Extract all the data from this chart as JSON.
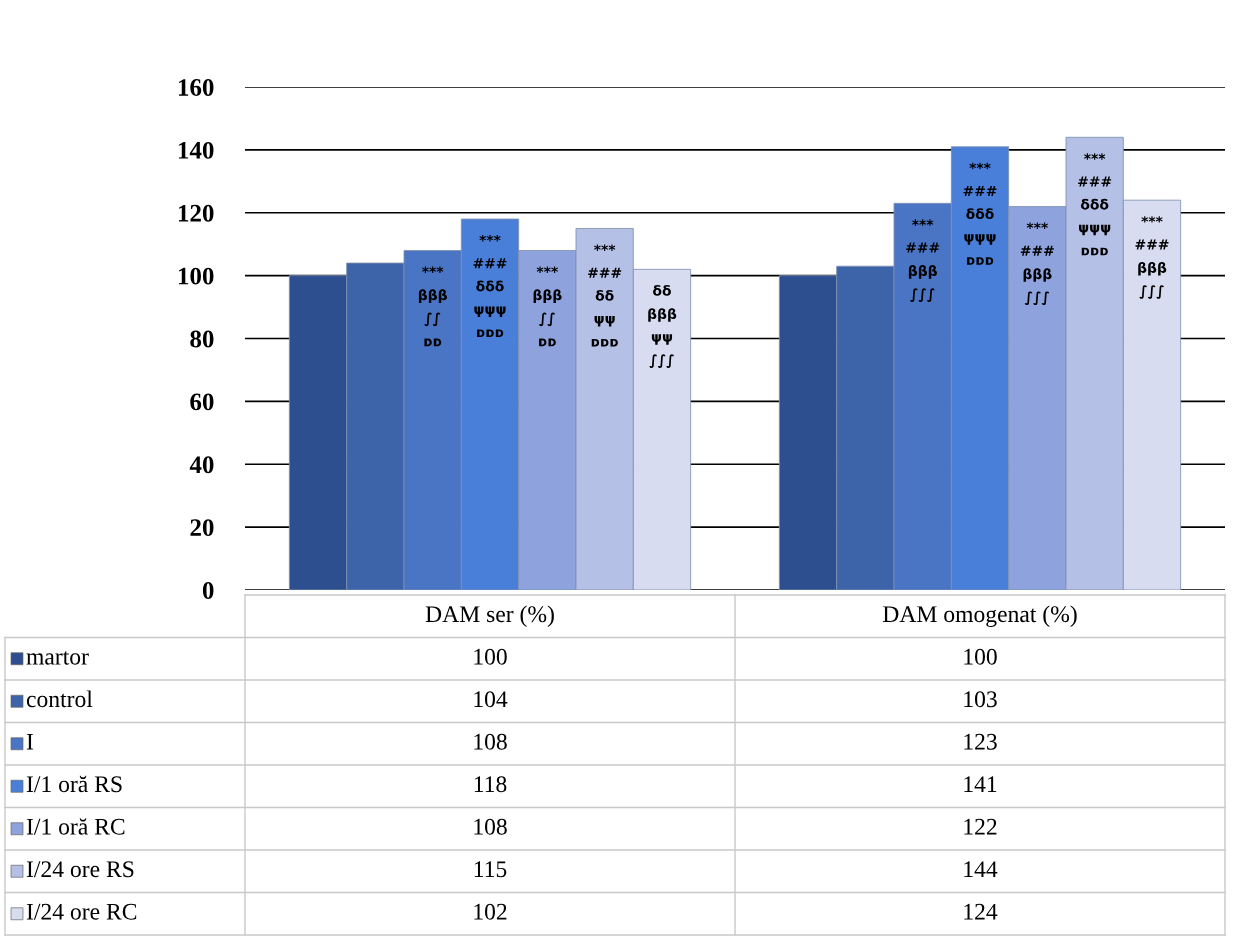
{
  "chart_data": {
    "type": "bar",
    "categories": [
      "DAM ser (%)",
      "DAM omogenat (%)"
    ],
    "series": [
      {
        "name": "martor",
        "color": "#2e4f8f",
        "values": [
          100,
          100
        ]
      },
      {
        "name": "control",
        "color": "#3d63a8",
        "values": [
          104,
          103
        ]
      },
      {
        "name": "I",
        "color": "#4a74c4",
        "values": [
          108,
          123
        ]
      },
      {
        "name": "I/1 oră RS",
        "color": "#4a7fd9",
        "values": [
          118,
          141
        ]
      },
      {
        "name": "I/1 oră RC",
        "color": "#8ea3dd",
        "values": [
          108,
          122
        ]
      },
      {
        "name": "I/24 ore RS",
        "color": "#b4c0e6",
        "values": [
          115,
          144
        ]
      },
      {
        "name": "I/24 ore RC",
        "color": "#d7dcf0",
        "values": [
          102,
          124
        ]
      }
    ],
    "annotations": [
      "***\nβββ\n∫∫\nᴅᴅ",
      "***\n###\nβββ\n∫∫∫",
      "***\n###\nδδδ\nψψψ\nᴅᴅᴅ",
      "***\n###\nδδδ\nψψψ\nᴅᴅᴅ",
      "***\nβββ\n∫∫\nᴅᴅ",
      "***\n###\nβββ\n∫∫∫",
      "***\n###\nδδ\nψψ\nᴅᴅᴅ",
      "***\n###\nδδδ\nψψψ\nᴅᴅᴅ",
      "δδ\nβββ\nψψ\n∫∫∫",
      "***\n###\nβββ\n∫∫∫"
    ],
    "ylim": [
      0,
      160
    ],
    "yticks": [
      0,
      20,
      40,
      60,
      80,
      100,
      120,
      140,
      160
    ],
    "grid": "y",
    "legend": "bottom",
    "data_labels": true
  }
}
